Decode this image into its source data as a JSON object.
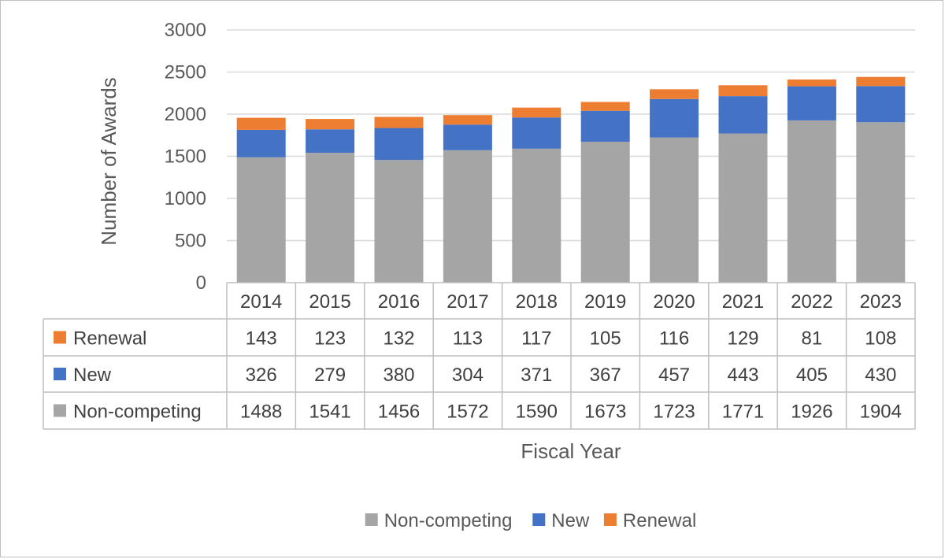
{
  "chart_data": {
    "type": "bar",
    "stacked": true,
    "title": "",
    "xlabel": "Fiscal Year",
    "ylabel": "Number of Awards",
    "ylim": [
      0,
      3000
    ],
    "yticks": [
      0,
      500,
      1000,
      1500,
      2000,
      2500,
      3000
    ],
    "grid": true,
    "legend_position": "bottom",
    "data_table": true,
    "categories": [
      "2014",
      "2015",
      "2016",
      "2017",
      "2018",
      "2019",
      "2020",
      "2021",
      "2022",
      "2023"
    ],
    "series": [
      {
        "name": "Non-competing",
        "color": "#a5a5a5",
        "values": [
          1488,
          1541,
          1456,
          1572,
          1590,
          1673,
          1723,
          1771,
          1926,
          1904
        ]
      },
      {
        "name": "New",
        "color": "#4472c4",
        "values": [
          326,
          279,
          380,
          304,
          371,
          367,
          457,
          443,
          405,
          430
        ]
      },
      {
        "name": "Renewal",
        "color": "#ed7d31",
        "values": [
          143,
          123,
          132,
          113,
          117,
          105,
          116,
          129,
          81,
          108
        ]
      }
    ],
    "table_row_order": [
      "Renewal",
      "New",
      "Non-competing"
    ]
  }
}
